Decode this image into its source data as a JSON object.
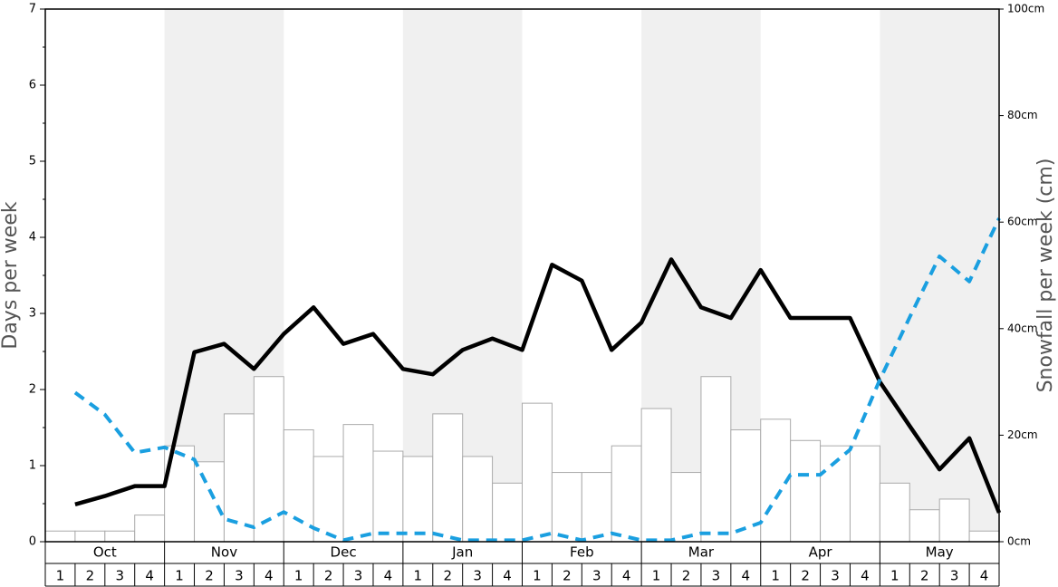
{
  "chart_data": {
    "type": "bar",
    "ylabel": "Days per week",
    "y2label": "Snowfall per week (cm)",
    "months": [
      "Oct",
      "Nov",
      "Dec",
      "Jan",
      "Feb",
      "Mar",
      "Apr",
      "May"
    ],
    "categories": [
      "1",
      "2",
      "3",
      "4",
      "1",
      "2",
      "3",
      "4",
      "1",
      "2",
      "3",
      "4",
      "1",
      "2",
      "3",
      "4",
      "1",
      "2",
      "3",
      "4",
      "1",
      "2",
      "3",
      "4",
      "1",
      "2",
      "3",
      "4",
      "1",
      "2",
      "3",
      "4"
    ],
    "ylim": [
      0,
      7
    ],
    "yticks": [
      0,
      1,
      2,
      3,
      4,
      5,
      6,
      7
    ],
    "y2lim": [
      0,
      100
    ],
    "y2ticks": [
      {
        "value": 0,
        "label": "0cm"
      },
      {
        "value": 20,
        "label": "20cm"
      },
      {
        "value": 40,
        "label": "40cm"
      },
      {
        "value": 60,
        "label": "60cm"
      },
      {
        "value": 80,
        "label": "80cm"
      },
      {
        "value": 100,
        "label": "100cm"
      }
    ],
    "series": [
      {
        "type": "bar",
        "axis": "y2",
        "color": "#ffffff",
        "values": [
          2,
          2,
          2,
          5,
          18,
          15,
          24,
          31,
          21,
          16,
          22,
          17,
          16,
          24,
          16,
          11,
          26,
          13,
          13,
          18,
          25,
          13,
          31,
          21,
          23,
          19,
          18,
          18,
          11,
          6,
          8,
          2
        ]
      },
      {
        "type": "line",
        "color": "#000000",
        "dash": false,
        "values": [
          0.49,
          0.6,
          0.73,
          0.73,
          2.49,
          2.6,
          2.27,
          2.73,
          3.08,
          2.6,
          2.73,
          2.27,
          2.2,
          2.52,
          2.67,
          2.52,
          3.64,
          3.43,
          2.52,
          2.88,
          3.71,
          3.08,
          2.94,
          3.57,
          2.94,
          2.94,
          2.94,
          2.1,
          1.52,
          0.95,
          1.36,
          0.38
        ]
      },
      {
        "type": "line",
        "color": "#1a9fe0",
        "dash": true,
        "values": [
          1.96,
          1.67,
          1.17,
          1.24,
          1.08,
          0.3,
          0.19,
          0.39,
          0.18,
          0.02,
          0.11,
          0.11,
          0.11,
          0.02,
          0.02,
          0.02,
          0.11,
          0.02,
          0.11,
          0.02,
          0.02,
          0.11,
          0.11,
          0.25,
          0.88,
          0.88,
          1.21,
          2.13,
          2.95,
          3.75,
          3.42,
          4.25
        ]
      }
    ]
  }
}
